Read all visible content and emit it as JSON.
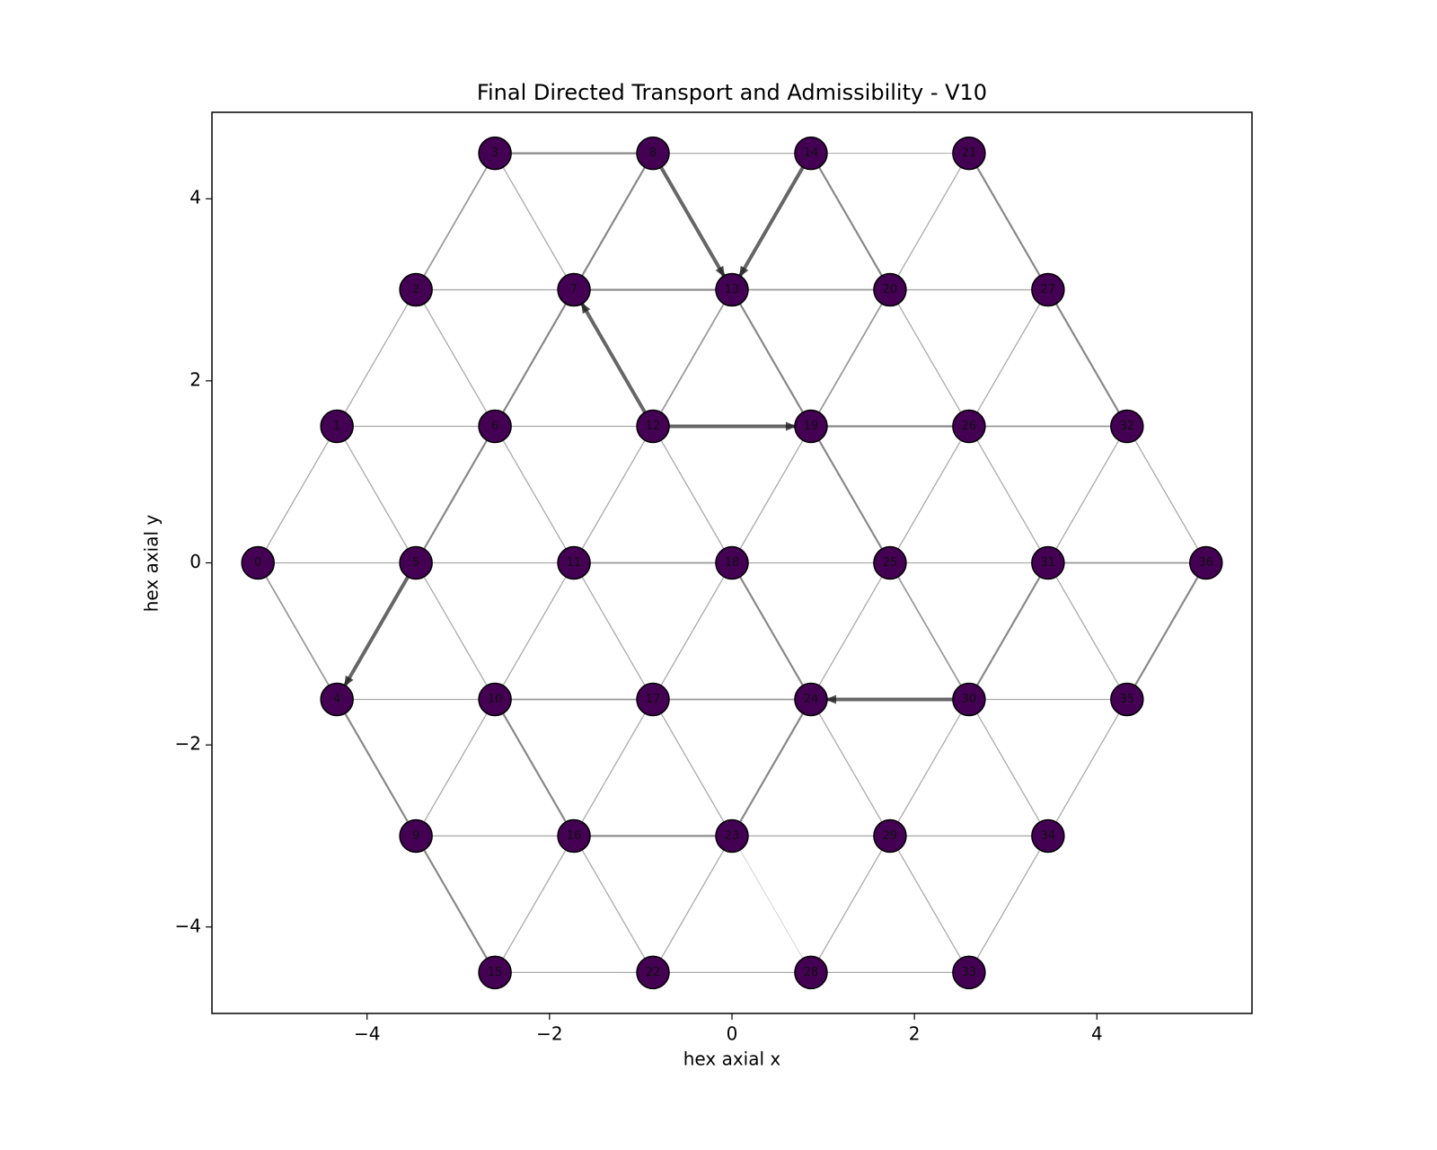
{
  "chart_data": {
    "type": "network",
    "title": "Final Directed Transport and Admissibility - V10",
    "x_label": "hex axial x",
    "y_label": "hex axial y",
    "xlim": [
      -5.7,
      5.7
    ],
    "ylim": [
      -4.95,
      4.95
    ],
    "xticks": [
      {
        "value": -4,
        "label": "−4"
      },
      {
        "value": -2,
        "label": "−2"
      },
      0,
      2,
      4
    ],
    "yticks": [
      {
        "value": -4,
        "label": "−4"
      },
      {
        "value": -2,
        "label": "−2"
      },
      0,
      2,
      4
    ],
    "node_color": "#440154",
    "edge_color": "#555555",
    "nodes": [
      {
        "id": 0,
        "x": -5.196,
        "y": 0
      },
      {
        "id": 1,
        "x": -4.33,
        "y": 1.5
      },
      {
        "id": 2,
        "x": -3.464,
        "y": 3
      },
      {
        "id": 3,
        "x": -2.598,
        "y": 4.5
      },
      {
        "id": 4,
        "x": -4.33,
        "y": -1.5
      },
      {
        "id": 5,
        "x": -3.464,
        "y": 0
      },
      {
        "id": 6,
        "x": -2.598,
        "y": 1.5
      },
      {
        "id": 7,
        "x": -1.732,
        "y": 3
      },
      {
        "id": 8,
        "x": -0.866,
        "y": 4.5
      },
      {
        "id": 9,
        "x": -3.464,
        "y": -3
      },
      {
        "id": 10,
        "x": -2.598,
        "y": -1.5
      },
      {
        "id": 11,
        "x": -1.732,
        "y": 0
      },
      {
        "id": 12,
        "x": -0.866,
        "y": 1.5
      },
      {
        "id": 13,
        "x": 0,
        "y": 3
      },
      {
        "id": 14,
        "x": 0.866,
        "y": 4.5
      },
      {
        "id": 15,
        "x": -2.598,
        "y": -4.5
      },
      {
        "id": 16,
        "x": -1.732,
        "y": -3
      },
      {
        "id": 17,
        "x": -0.866,
        "y": -1.5
      },
      {
        "id": 18,
        "x": 0,
        "y": 0
      },
      {
        "id": 19,
        "x": 0.866,
        "y": 1.5
      },
      {
        "id": 20,
        "x": 1.732,
        "y": 3
      },
      {
        "id": 21,
        "x": 2.598,
        "y": 4.5
      },
      {
        "id": 22,
        "x": -0.866,
        "y": -4.5
      },
      {
        "id": 23,
        "x": 0,
        "y": -3
      },
      {
        "id": 24,
        "x": 0.866,
        "y": -1.5
      },
      {
        "id": 25,
        "x": 1.732,
        "y": 0
      },
      {
        "id": 26,
        "x": 2.598,
        "y": 1.5
      },
      {
        "id": 27,
        "x": 3.464,
        "y": 3
      },
      {
        "id": 28,
        "x": 0.866,
        "y": -4.5
      },
      {
        "id": 29,
        "x": 1.732,
        "y": -3
      },
      {
        "id": 30,
        "x": 2.598,
        "y": -1.5
      },
      {
        "id": 31,
        "x": 3.464,
        "y": 0
      },
      {
        "id": 32,
        "x": 4.33,
        "y": 1.5
      },
      {
        "id": 33,
        "x": 2.598,
        "y": -4.5
      },
      {
        "id": 34,
        "x": 3.464,
        "y": -3
      },
      {
        "id": 35,
        "x": 4.33,
        "y": -1.5
      },
      {
        "id": 36,
        "x": 5.196,
        "y": 0
      }
    ],
    "edges": [
      {
        "source": 3,
        "target": 8,
        "weight": 2
      },
      {
        "source": 8,
        "target": 14,
        "weight": 1
      },
      {
        "source": 14,
        "target": 21,
        "weight": 0.8
      },
      {
        "source": 2,
        "target": 7,
        "weight": 1
      },
      {
        "source": 7,
        "target": 13,
        "weight": 2
      },
      {
        "source": 13,
        "target": 20,
        "weight": 1.5
      },
      {
        "source": 20,
        "target": 27,
        "weight": 1
      },
      {
        "source": 1,
        "target": 6,
        "weight": 1
      },
      {
        "source": 6,
        "target": 12,
        "weight": 1
      },
      {
        "source": 12,
        "target": 19,
        "weight": 4
      },
      {
        "source": 19,
        "target": 26,
        "weight": 2
      },
      {
        "source": 26,
        "target": 32,
        "weight": 1.5
      },
      {
        "source": 0,
        "target": 5,
        "weight": 1
      },
      {
        "source": 5,
        "target": 11,
        "weight": 1
      },
      {
        "source": 11,
        "target": 18,
        "weight": 1.5
      },
      {
        "source": 18,
        "target": 25,
        "weight": 1
      },
      {
        "source": 25,
        "target": 31,
        "weight": 1
      },
      {
        "source": 31,
        "target": 36,
        "weight": 1.5
      },
      {
        "source": 4,
        "target": 10,
        "weight": 1
      },
      {
        "source": 10,
        "target": 17,
        "weight": 1.5
      },
      {
        "source": 17,
        "target": 24,
        "weight": 1.5
      },
      {
        "source": 30,
        "target": 24,
        "weight": 4
      },
      {
        "source": 30,
        "target": 35,
        "weight": 1
      },
      {
        "source": 9,
        "target": 16,
        "weight": 1
      },
      {
        "source": 16,
        "target": 23,
        "weight": 2
      },
      {
        "source": 23,
        "target": 29,
        "weight": 1
      },
      {
        "source": 29,
        "target": 34,
        "weight": 1
      },
      {
        "source": 15,
        "target": 22,
        "weight": 1
      },
      {
        "source": 22,
        "target": 28,
        "weight": 1
      },
      {
        "source": 28,
        "target": 33,
        "weight": 1
      },
      {
        "source": 3,
        "target": 2,
        "weight": 1.5
      },
      {
        "source": 3,
        "target": 7,
        "weight": 1
      },
      {
        "source": 8,
        "target": 7,
        "weight": 2
      },
      {
        "source": 8,
        "target": 13,
        "weight": 4
      },
      {
        "source": 14,
        "target": 13,
        "weight": 4
      },
      {
        "source": 14,
        "target": 20,
        "weight": 2
      },
      {
        "source": 21,
        "target": 20,
        "weight": 1
      },
      {
        "source": 21,
        "target": 27,
        "weight": 2
      },
      {
        "source": 2,
        "target": 1,
        "weight": 1
      },
      {
        "source": 2,
        "target": 6,
        "weight": 1
      },
      {
        "source": 7,
        "target": 6,
        "weight": 2
      },
      {
        "source": 12,
        "target": 7,
        "weight": 4
      },
      {
        "source": 13,
        "target": 12,
        "weight": 1.5
      },
      {
        "source": 13,
        "target": 19,
        "weight": 2
      },
      {
        "source": 20,
        "target": 19,
        "weight": 1.5
      },
      {
        "source": 20,
        "target": 26,
        "weight": 1
      },
      {
        "source": 27,
        "target": 26,
        "weight": 1
      },
      {
        "source": 27,
        "target": 32,
        "weight": 2
      },
      {
        "source": 1,
        "target": 0,
        "weight": 1
      },
      {
        "source": 1,
        "target": 5,
        "weight": 1
      },
      {
        "source": 6,
        "target": 5,
        "weight": 2
      },
      {
        "source": 6,
        "target": 11,
        "weight": 1
      },
      {
        "source": 12,
        "target": 11,
        "weight": 1
      },
      {
        "source": 12,
        "target": 18,
        "weight": 1
      },
      {
        "source": 19,
        "target": 18,
        "weight": 1
      },
      {
        "source": 19,
        "target": 25,
        "weight": 2
      },
      {
        "source": 26,
        "target": 25,
        "weight": 1
      },
      {
        "source": 26,
        "target": 31,
        "weight": 1
      },
      {
        "source": 32,
        "target": 31,
        "weight": 1
      },
      {
        "source": 32,
        "target": 36,
        "weight": 1
      },
      {
        "source": 0,
        "target": 4,
        "weight": 1.5
      },
      {
        "source": 5,
        "target": 4,
        "weight": 4
      },
      {
        "source": 5,
        "target": 10,
        "weight": 1
      },
      {
        "source": 11,
        "target": 10,
        "weight": 1
      },
      {
        "source": 11,
        "target": 17,
        "weight": 1
      },
      {
        "source": 18,
        "target": 17,
        "weight": 1
      },
      {
        "source": 18,
        "target": 24,
        "weight": 2
      },
      {
        "source": 25,
        "target": 24,
        "weight": 1
      },
      {
        "source": 25,
        "target": 30,
        "weight": 1.5
      },
      {
        "source": 31,
        "target": 30,
        "weight": 2
      },
      {
        "source": 31,
        "target": 35,
        "weight": 1
      },
      {
        "source": 36,
        "target": 35,
        "weight": 2
      },
      {
        "source": 4,
        "target": 9,
        "weight": 2
      },
      {
        "source": 10,
        "target": 9,
        "weight": 1
      },
      {
        "source": 10,
        "target": 16,
        "weight": 2
      },
      {
        "source": 17,
        "target": 16,
        "weight": 1
      },
      {
        "source": 17,
        "target": 23,
        "weight": 1
      },
      {
        "source": 24,
        "target": 23,
        "weight": 2
      },
      {
        "source": 24,
        "target": 29,
        "weight": 1
      },
      {
        "source": 30,
        "target": 29,
        "weight": 1
      },
      {
        "source": 30,
        "target": 34,
        "weight": 1
      },
      {
        "source": 35,
        "target": 34,
        "weight": 1
      },
      {
        "source": 9,
        "target": 15,
        "weight": 2
      },
      {
        "source": 16,
        "target": 15,
        "weight": 1
      },
      {
        "source": 16,
        "target": 22,
        "weight": 1
      },
      {
        "source": 23,
        "target": 22,
        "weight": 1
      },
      {
        "source": 23,
        "target": 28,
        "weight": 0.3
      },
      {
        "source": 29,
        "target": 28,
        "weight": 1
      },
      {
        "source": 29,
        "target": 33,
        "weight": 1
      },
      {
        "source": 34,
        "target": 33,
        "weight": 1
      }
    ]
  }
}
